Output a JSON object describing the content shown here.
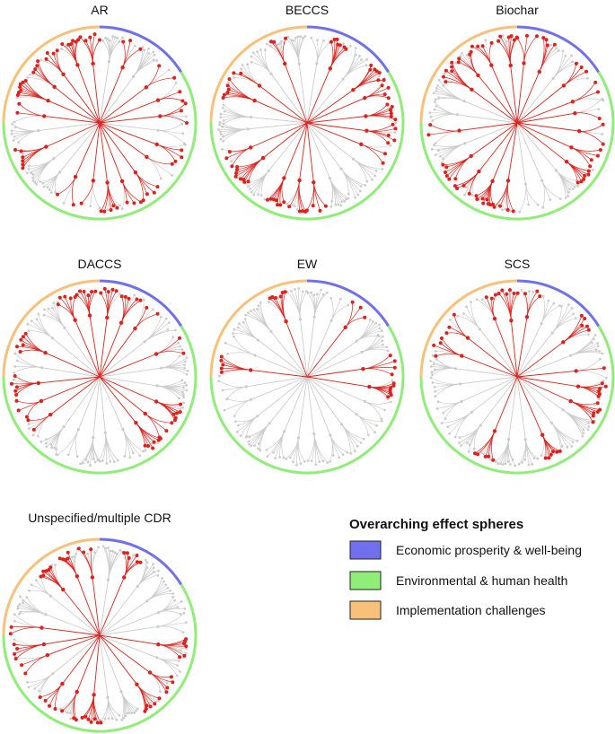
{
  "figure": {
    "panels": [
      {
        "title": "AR"
      },
      {
        "title": "BECCS"
      },
      {
        "title": "Biochar"
      },
      {
        "title": "DACCS"
      },
      {
        "title": "EW"
      },
      {
        "title": "SCS"
      },
      {
        "title": "Unspecified/multiple CDR"
      }
    ],
    "legend": {
      "title": "Overarching effect spheres",
      "items": [
        {
          "label": "Economic prosperity & well-being",
          "color": "#7070ee"
        },
        {
          "label": "Environmental & human health",
          "color": "#90ee78"
        },
        {
          "label": "Implementation challenges",
          "color": "#f8c078"
        }
      ]
    },
    "colors": {
      "highlight": "#e0201a",
      "inactive": "#cccccc"
    }
  }
}
